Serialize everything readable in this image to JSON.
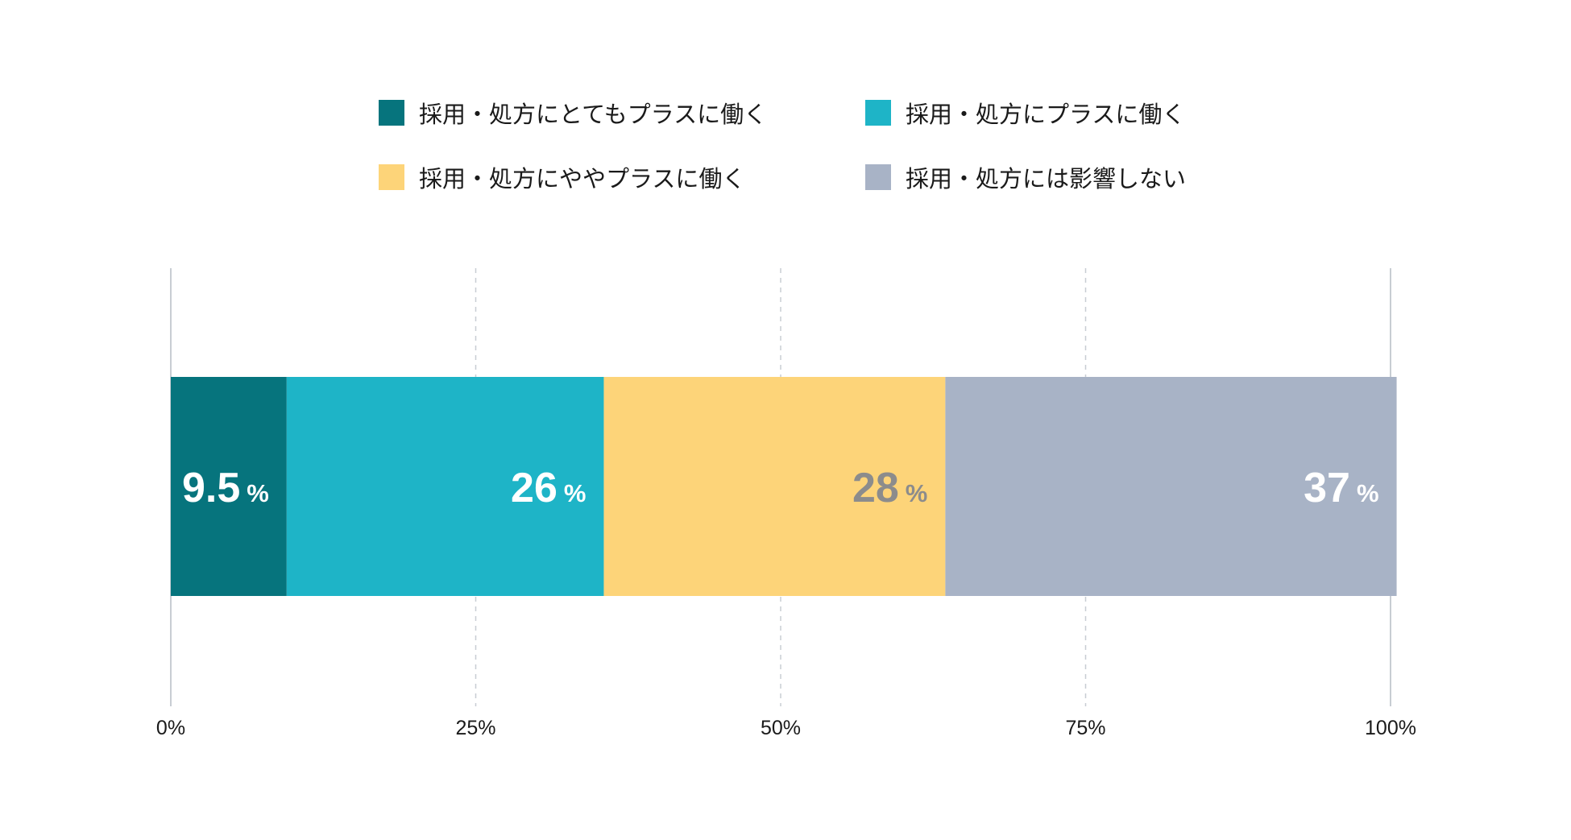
{
  "chart_data": {
    "type": "bar",
    "orientation": "horizontal",
    "stacked": true,
    "categories": [
      ""
    ],
    "series": [
      {
        "name": "採用・処方にとてもプラスに働く",
        "values": [
          9.5
        ],
        "label": "9.5",
        "unit": "%",
        "color": "#06747D",
        "label_color": "#ffffff"
      },
      {
        "name": "採用・処方にプラスに働く",
        "values": [
          26
        ],
        "label": "26",
        "unit": "%",
        "color": "#1EB4C7",
        "label_color": "#ffffff"
      },
      {
        "name": "採用・処方にややプラスに働く",
        "values": [
          28
        ],
        "label": "28",
        "unit": "%",
        "color": "#FDD479",
        "label_color": "#8C8C8C"
      },
      {
        "name": "採用・処方には影響しない",
        "values": [
          37
        ],
        "label": "37",
        "unit": "%",
        "color": "#A8B3C6",
        "label_color": "#ffffff"
      }
    ],
    "xlim": [
      0,
      100
    ],
    "xticks": [
      0,
      25,
      50,
      75,
      100
    ],
    "xtick_labels": [
      "0%",
      "25%",
      "50%",
      "75%",
      "100%"
    ],
    "grid": true,
    "legend": "top"
  }
}
